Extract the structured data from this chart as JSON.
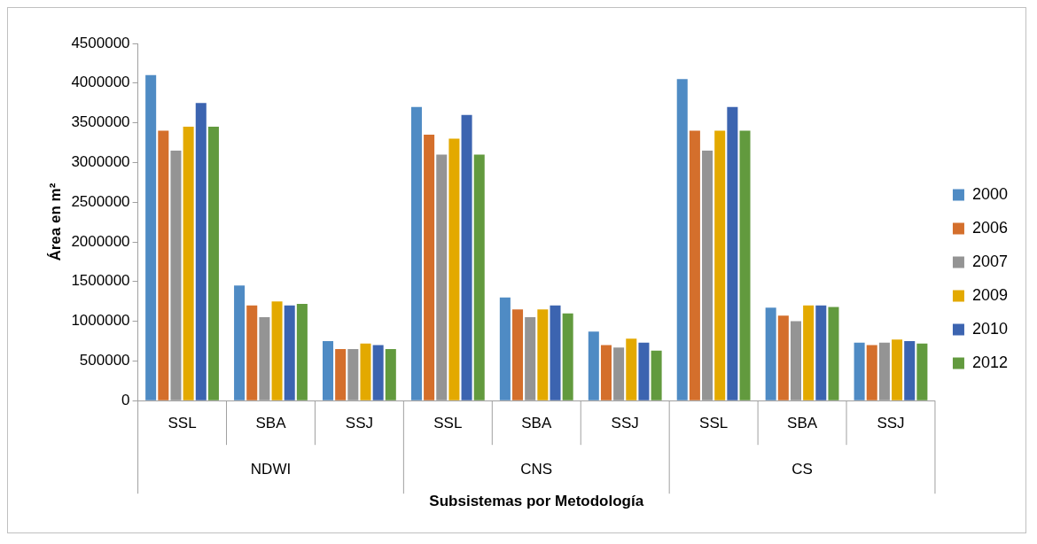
{
  "chart_data": {
    "type": "bar",
    "xlabel": "Subsistemas por Metodología",
    "ylabel": "Área en m²",
    "categories": [
      "SSL",
      "SBA",
      "SSJ",
      "SSL",
      "SBA",
      "SSJ",
      "SSL",
      "SBA",
      "SSJ"
    ],
    "annotations": [
      "NDWI",
      "CNS",
      "CS"
    ],
    "series": [
      {
        "name": "2000",
        "color": "#4f8bc4",
        "values": [
          4100000,
          1450000,
          750000,
          3700000,
          1300000,
          870000,
          4050000,
          1170000,
          730000
        ]
      },
      {
        "name": "2006",
        "color": "#d46f2c",
        "values": [
          3400000,
          1200000,
          650000,
          3350000,
          1150000,
          700000,
          3400000,
          1070000,
          700000
        ]
      },
      {
        "name": "2007",
        "color": "#949494",
        "values": [
          3150000,
          1050000,
          650000,
          3100000,
          1050000,
          670000,
          3150000,
          1000000,
          730000
        ]
      },
      {
        "name": "2009",
        "color": "#e3a900",
        "values": [
          3450000,
          1250000,
          720000,
          3300000,
          1150000,
          780000,
          3400000,
          1200000,
          770000
        ]
      },
      {
        "name": "2010",
        "color": "#3c64b0",
        "values": [
          3750000,
          1200000,
          700000,
          3600000,
          1200000,
          730000,
          3700000,
          1200000,
          750000
        ]
      },
      {
        "name": "2012",
        "color": "#629a3e",
        "values": [
          3450000,
          1220000,
          650000,
          3100000,
          1100000,
          630000,
          3400000,
          1180000,
          720000
        ]
      }
    ],
    "ylim": [
      0,
      4500000
    ],
    "yticks": [
      0,
      500000,
      1000000,
      1500000,
      2000000,
      2500000,
      3000000,
      3500000,
      4000000,
      4500000
    ],
    "grid": false,
    "legend": "right"
  }
}
